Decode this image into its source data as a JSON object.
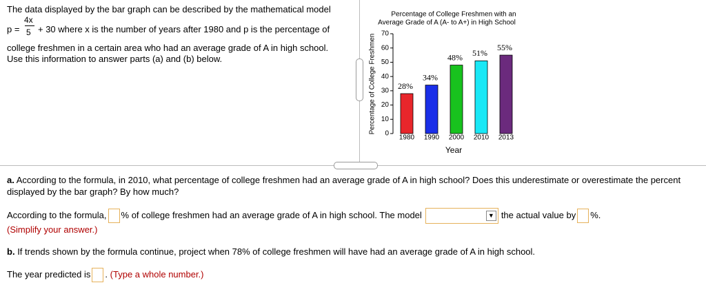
{
  "problem": {
    "intro": "The data displayed by the bar graph can be described by the mathematical model",
    "formula_lhs": "p =",
    "formula_numerator": "4x",
    "formula_denominator": "5",
    "formula_rest": "+ 30 where x is the number of years after 1980 and p is the percentage of",
    "line2": "college freshmen in a certain area who had an average grade of A in high school.",
    "line3": "Use this information to answer parts (a) and (b) below."
  },
  "chart_data": {
    "type": "bar",
    "title": [
      "Percentage of College Freshmen with an",
      "Average Grade of A (A- to A+) in High School"
    ],
    "xlabel": "Year",
    "ylabel": "Percentage of College Freshmen",
    "categories": [
      "1980",
      "1990",
      "2000",
      "2010",
      "2013"
    ],
    "values": [
      28,
      34,
      48,
      51,
      55
    ],
    "value_labels": [
      "28%",
      "34%",
      "48%",
      "51%",
      "55%"
    ],
    "colors": [
      "#e8262b",
      "#1a2fe8",
      "#18c21e",
      "#19e8f6",
      "#6b2a7d"
    ],
    "ylim": [
      0,
      70
    ],
    "yticks": [
      0,
      10,
      20,
      30,
      40,
      50,
      60,
      70
    ]
  },
  "part_a": {
    "label": "a.",
    "question": "According to the formula, in 2010, what percentage of college freshmen had an average grade of A in high school? Does this underestimate or overestimate the percent displayed by the bar graph? By how much?",
    "answer_1": "According to the formula,",
    "answer_2": "% of college freshmen had an average grade of A in high school. The model",
    "answer_3": "the actual value by",
    "answer_4": "%.",
    "hint": "(Simplify your answer.)"
  },
  "part_b": {
    "label": "b.",
    "question": "If trends shown by the formula continue, project when 78% of college freshmen will have had an average grade of A in high school.",
    "answer_1": "The year predicted is",
    "answer_2": ".",
    "hint": "(Type a whole number.)"
  }
}
